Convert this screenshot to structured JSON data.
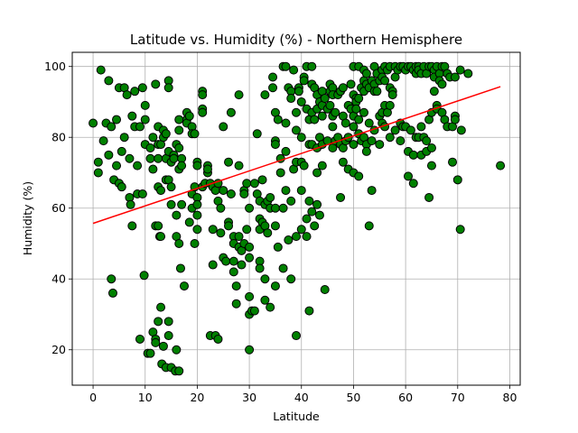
{
  "chart_data": {
    "type": "scatter",
    "title": "Latitude vs. Humidity (%) - Northern Hemisphere",
    "xlabel": "Latitude",
    "ylabel": "Humidity (%)",
    "xlim": [
      -4,
      82
    ],
    "ylim": [
      10,
      104
    ],
    "xticks": [
      0,
      10,
      20,
      30,
      40,
      50,
      60,
      70,
      80
    ],
    "yticks": [
      20,
      40,
      60,
      80,
      100
    ],
    "grid": true,
    "marker_color": "#008000",
    "marker_edge_color": "#000000",
    "regression_color": "#ff0000",
    "regression_line": {
      "x": [
        0,
        78.2
      ],
      "y": [
        55.7,
        94.3
      ]
    },
    "points": [
      [
        0,
        84
      ],
      [
        1,
        73
      ],
      [
        1,
        70
      ],
      [
        1.5,
        99
      ],
      [
        2,
        79
      ],
      [
        2.5,
        84
      ],
      [
        3,
        96
      ],
      [
        3,
        75
      ],
      [
        3.5,
        83
      ],
      [
        3.5,
        40
      ],
      [
        3.8,
        36
      ],
      [
        4,
        68
      ],
      [
        4.5,
        85
      ],
      [
        4.5,
        72
      ],
      [
        5,
        94
      ],
      [
        5,
        67
      ],
      [
        5.5,
        66
      ],
      [
        5.5,
        76
      ],
      [
        6,
        94
      ],
      [
        6,
        80
      ],
      [
        6.5,
        92
      ],
      [
        7,
        74
      ],
      [
        7,
        63
      ],
      [
        7.2,
        61
      ],
      [
        7.5,
        55
      ],
      [
        7.5,
        86
      ],
      [
        8,
        93
      ],
      [
        8,
        83
      ],
      [
        8.5,
        72
      ],
      [
        8.5,
        64
      ],
      [
        9,
        83
      ],
      [
        9,
        23
      ],
      [
        9.5,
        94
      ],
      [
        9.5,
        64
      ],
      [
        9.8,
        41
      ],
      [
        10,
        89
      ],
      [
        10,
        85
      ],
      [
        10,
        78
      ],
      [
        10.5,
        19
      ],
      [
        11,
        77
      ],
      [
        11,
        74
      ],
      [
        11,
        19
      ],
      [
        11.5,
        80
      ],
      [
        11.5,
        71
      ],
      [
        11.5,
        25
      ],
      [
        12,
        95
      ],
      [
        12,
        55
      ],
      [
        12,
        23
      ],
      [
        12,
        22
      ],
      [
        12.5,
        83
      ],
      [
        12.5,
        78
      ],
      [
        12.5,
        74
      ],
      [
        12.5,
        66
      ],
      [
        12.5,
        55
      ],
      [
        12.5,
        28
      ],
      [
        12.8,
        52
      ],
      [
        13,
        78
      ],
      [
        13,
        65
      ],
      [
        13,
        52
      ],
      [
        13,
        32
      ],
      [
        13.2,
        16
      ],
      [
        13.5,
        82
      ],
      [
        13.5,
        80
      ],
      [
        13.5,
        21
      ],
      [
        14,
        81
      ],
      [
        14,
        74
      ],
      [
        14,
        68
      ],
      [
        14,
        15
      ],
      [
        14.5,
        96
      ],
      [
        14.5,
        94
      ],
      [
        14.5,
        76
      ],
      [
        14.5,
        68
      ],
      [
        14.5,
        28
      ],
      [
        14.5,
        24
      ],
      [
        15,
        73
      ],
      [
        15,
        66
      ],
      [
        15,
        61
      ],
      [
        15,
        15
      ],
      [
        15.5,
        75
      ],
      [
        15.5,
        74
      ],
      [
        15.8,
        14
      ],
      [
        16,
        78
      ],
      [
        16,
        58
      ],
      [
        16,
        52
      ],
      [
        16,
        20
      ],
      [
        16.5,
        85
      ],
      [
        16.5,
        82
      ],
      [
        16.5,
        77
      ],
      [
        16.5,
        71
      ],
      [
        16.5,
        50
      ],
      [
        16.5,
        14
      ],
      [
        16.8,
        43
      ],
      [
        17,
        74
      ],
      [
        17,
        72
      ],
      [
        17,
        61
      ],
      [
        17.5,
        38
      ],
      [
        18,
        87
      ],
      [
        18,
        85
      ],
      [
        18,
        84
      ],
      [
        18.5,
        86
      ],
      [
        18.5,
        56
      ],
      [
        19,
        83
      ],
      [
        19,
        81
      ],
      [
        19,
        64
      ],
      [
        19,
        60
      ],
      [
        19.5,
        81
      ],
      [
        19.5,
        66
      ],
      [
        19.5,
        50
      ],
      [
        20,
        73
      ],
      [
        20,
        72
      ],
      [
        20,
        63
      ],
      [
        20,
        61
      ],
      [
        20,
        58
      ],
      [
        20,
        54
      ],
      [
        21,
        93
      ],
      [
        21,
        88
      ],
      [
        21,
        87
      ],
      [
        21,
        92
      ],
      [
        21,
        66
      ],
      [
        21.5,
        67
      ],
      [
        22,
        72
      ],
      [
        22,
        70
      ],
      [
        22,
        71
      ],
      [
        22.5,
        67
      ],
      [
        22.5,
        24
      ],
      [
        23,
        66
      ],
      [
        23,
        54
      ],
      [
        23,
        44
      ],
      [
        23.5,
        65
      ],
      [
        23.5,
        24
      ],
      [
        24,
        67
      ],
      [
        24,
        62
      ],
      [
        24,
        23
      ],
      [
        24.5,
        60
      ],
      [
        24.5,
        53
      ],
      [
        25,
        83
      ],
      [
        25,
        65
      ],
      [
        25,
        46
      ],
      [
        25.5,
        45
      ],
      [
        26,
        73
      ],
      [
        26,
        56
      ],
      [
        26,
        55
      ],
      [
        26.5,
        87
      ],
      [
        26.5,
        64
      ],
      [
        27,
        52
      ],
      [
        27,
        50
      ],
      [
        27,
        45
      ],
      [
        27,
        42
      ],
      [
        27.5,
        38
      ],
      [
        27.5,
        33
      ],
      [
        28,
        92
      ],
      [
        28,
        72
      ],
      [
        28,
        52
      ],
      [
        28,
        49
      ],
      [
        28.5,
        48
      ],
      [
        28.5,
        44
      ],
      [
        29,
        65
      ],
      [
        29,
        64
      ],
      [
        29,
        50
      ],
      [
        29.5,
        67
      ],
      [
        29.5,
        54
      ],
      [
        30,
        60
      ],
      [
        30,
        49
      ],
      [
        30,
        46
      ],
      [
        30,
        35
      ],
      [
        30,
        30
      ],
      [
        30,
        20
      ],
      [
        30.5,
        31
      ],
      [
        31,
        67
      ],
      [
        31,
        31
      ],
      [
        31.5,
        81
      ],
      [
        31.5,
        64
      ],
      [
        32,
        62
      ],
      [
        32,
        57
      ],
      [
        32,
        54
      ],
      [
        32,
        45
      ],
      [
        32,
        43
      ],
      [
        32.5,
        68
      ],
      [
        32.5,
        56
      ],
      [
        33,
        92
      ],
      [
        33,
        61
      ],
      [
        33,
        55
      ],
      [
        33,
        40
      ],
      [
        33,
        34
      ],
      [
        33.5,
        62
      ],
      [
        33.5,
        53
      ],
      [
        34,
        63
      ],
      [
        34,
        60
      ],
      [
        34,
        32
      ],
      [
        34.5,
        97
      ],
      [
        34.5,
        94
      ],
      [
        35,
        87
      ],
      [
        35,
        79
      ],
      [
        35,
        78
      ],
      [
        35,
        60
      ],
      [
        35,
        55
      ],
      [
        35,
        38
      ],
      [
        35.5,
        85
      ],
      [
        35.5,
        49
      ],
      [
        36,
        74
      ],
      [
        36,
        70
      ],
      [
        36.5,
        100
      ],
      [
        36.5,
        60
      ],
      [
        36.5,
        43
      ],
      [
        37,
        100
      ],
      [
        37,
        84
      ],
      [
        37,
        76
      ],
      [
        37,
        65
      ],
      [
        37.5,
        94
      ],
      [
        37.5,
        51
      ],
      [
        38,
        93
      ],
      [
        38,
        91
      ],
      [
        38,
        62
      ],
      [
        38,
        40
      ],
      [
        38.5,
        99
      ],
      [
        38.5,
        71
      ],
      [
        39,
        87
      ],
      [
        39,
        82
      ],
      [
        39,
        73
      ],
      [
        39,
        52
      ],
      [
        39,
        24
      ],
      [
        39.5,
        94
      ],
      [
        39.5,
        93
      ],
      [
        40,
        90
      ],
      [
        40,
        80
      ],
      [
        40,
        73
      ],
      [
        40,
        65
      ],
      [
        40,
        54
      ],
      [
        40.5,
        97
      ],
      [
        40.5,
        96
      ],
      [
        40.5,
        72
      ],
      [
        41,
        100
      ],
      [
        41,
        88
      ],
      [
        41,
        52
      ],
      [
        41,
        57
      ],
      [
        41.5,
        85
      ],
      [
        41.5,
        78
      ],
      [
        41.5,
        62
      ],
      [
        41.5,
        31
      ],
      [
        42,
        100
      ],
      [
        42,
        95
      ],
      [
        42,
        87
      ],
      [
        42,
        78
      ],
      [
        42,
        59
      ],
      [
        42.5,
        94
      ],
      [
        42.5,
        85
      ],
      [
        42.5,
        55
      ],
      [
        43,
        92
      ],
      [
        43,
        88
      ],
      [
        43,
        77
      ],
      [
        43,
        70
      ],
      [
        43,
        61
      ],
      [
        43.5,
        90
      ],
      [
        43.5,
        80
      ],
      [
        43.5,
        58
      ],
      [
        44,
        93
      ],
      [
        44,
        89
      ],
      [
        44,
        86
      ],
      [
        44,
        78
      ],
      [
        44,
        72
      ],
      [
        44.5,
        91
      ],
      [
        44.5,
        37
      ],
      [
        45,
        88
      ],
      [
        45,
        79
      ],
      [
        45.5,
        95
      ],
      [
        45.5,
        93
      ],
      [
        45.5,
        89
      ],
      [
        46,
        94
      ],
      [
        46,
        92
      ],
      [
        46,
        86
      ],
      [
        46,
        83
      ],
      [
        46,
        77
      ],
      [
        46.5,
        87
      ],
      [
        46.5,
        79
      ],
      [
        47,
        92
      ],
      [
        47,
        80
      ],
      [
        47.5,
        93
      ],
      [
        47.5,
        78
      ],
      [
        47.5,
        63
      ],
      [
        48,
        94
      ],
      [
        48,
        86
      ],
      [
        48,
        77
      ],
      [
        48,
        73
      ],
      [
        48.5,
        84
      ],
      [
        48.5,
        79
      ],
      [
        49,
        89
      ],
      [
        49,
        71
      ],
      [
        49,
        80
      ],
      [
        49.5,
        95
      ],
      [
        49.5,
        88
      ],
      [
        50,
        100
      ],
      [
        50,
        92
      ],
      [
        50,
        86
      ],
      [
        50,
        83
      ],
      [
        50,
        78
      ],
      [
        50,
        70
      ],
      [
        50.5,
        91
      ],
      [
        50.5,
        90
      ],
      [
        50.5,
        88
      ],
      [
        51,
        100
      ],
      [
        51,
        91
      ],
      [
        51,
        85
      ],
      [
        51,
        81
      ],
      [
        51,
        69
      ],
      [
        51.5,
        94
      ],
      [
        51.5,
        79
      ],
      [
        52,
        99
      ],
      [
        52,
        96
      ],
      [
        52,
        93
      ],
      [
        52,
        87
      ],
      [
        52,
        80
      ],
      [
        52.5,
        98
      ],
      [
        52.5,
        95
      ],
      [
        52.5,
        78
      ],
      [
        52.5,
        76
      ],
      [
        53,
        94
      ],
      [
        53,
        84
      ],
      [
        53,
        55
      ],
      [
        53.5,
        96
      ],
      [
        53.5,
        79
      ],
      [
        53.5,
        65
      ],
      [
        54,
        100
      ],
      [
        54,
        95
      ],
      [
        54,
        93
      ],
      [
        54,
        82
      ],
      [
        54.5,
        98
      ],
      [
        54.5,
        93
      ],
      [
        55,
        96
      ],
      [
        55,
        86
      ],
      [
        55,
        78
      ],
      [
        55.5,
        99
      ],
      [
        55.5,
        97
      ],
      [
        55.5,
        87
      ],
      [
        55.5,
        84
      ],
      [
        56,
        100
      ],
      [
        56,
        96
      ],
      [
        56,
        89
      ],
      [
        56,
        83
      ],
      [
        56.5,
        99
      ],
      [
        56.5,
        87
      ],
      [
        57,
        100
      ],
      [
        57,
        94
      ],
      [
        57,
        89
      ],
      [
        57,
        80
      ],
      [
        57.5,
        93
      ],
      [
        57.5,
        92
      ],
      [
        58,
        100
      ],
      [
        58,
        97
      ],
      [
        58,
        82
      ],
      [
        58.5,
        99
      ],
      [
        59,
        100
      ],
      [
        59,
        84
      ],
      [
        59,
        79
      ],
      [
        59.5,
        100
      ],
      [
        59.5,
        83
      ],
      [
        60,
        99
      ],
      [
        60,
        83
      ],
      [
        60.5,
        100
      ],
      [
        60.5,
        76
      ],
      [
        60.5,
        69
      ],
      [
        61,
        100
      ],
      [
        61,
        82
      ],
      [
        61.5,
        99
      ],
      [
        61.5,
        75
      ],
      [
        61.5,
        67
      ],
      [
        62,
        100
      ],
      [
        62,
        98
      ],
      [
        62,
        80
      ],
      [
        62.5,
        100
      ],
      [
        62.5,
        99
      ],
      [
        62.5,
        80
      ],
      [
        63,
        98
      ],
      [
        63,
        83
      ],
      [
        63,
        75
      ],
      [
        63.5,
        100
      ],
      [
        63.5,
        80
      ],
      [
        64,
        98
      ],
      [
        64,
        79
      ],
      [
        64,
        76
      ],
      [
        64.5,
        100
      ],
      [
        64.5,
        85
      ],
      [
        64.5,
        63
      ],
      [
        65,
        100
      ],
      [
        65,
        87
      ],
      [
        65,
        77
      ],
      [
        65,
        72
      ],
      [
        65.5,
        99
      ],
      [
        65.5,
        97
      ],
      [
        65.5,
        93
      ],
      [
        66,
        100
      ],
      [
        66,
        89
      ],
      [
        66,
        88
      ],
      [
        66.5,
        98
      ],
      [
        66.5,
        96
      ],
      [
        67,
        100
      ],
      [
        67,
        87
      ],
      [
        67,
        95
      ],
      [
        67.5,
        100
      ],
      [
        67.5,
        85
      ],
      [
        68,
        98
      ],
      [
        68,
        83
      ],
      [
        68.5,
        97
      ],
      [
        69,
        83
      ],
      [
        69,
        73
      ],
      [
        69.5,
        97
      ],
      [
        69.5,
        86
      ],
      [
        69.5,
        85
      ],
      [
        70,
        68
      ],
      [
        70.5,
        99
      ],
      [
        70.5,
        54
      ],
      [
        70.7,
        82
      ],
      [
        72,
        98
      ],
      [
        78.2,
        72
      ]
    ]
  }
}
